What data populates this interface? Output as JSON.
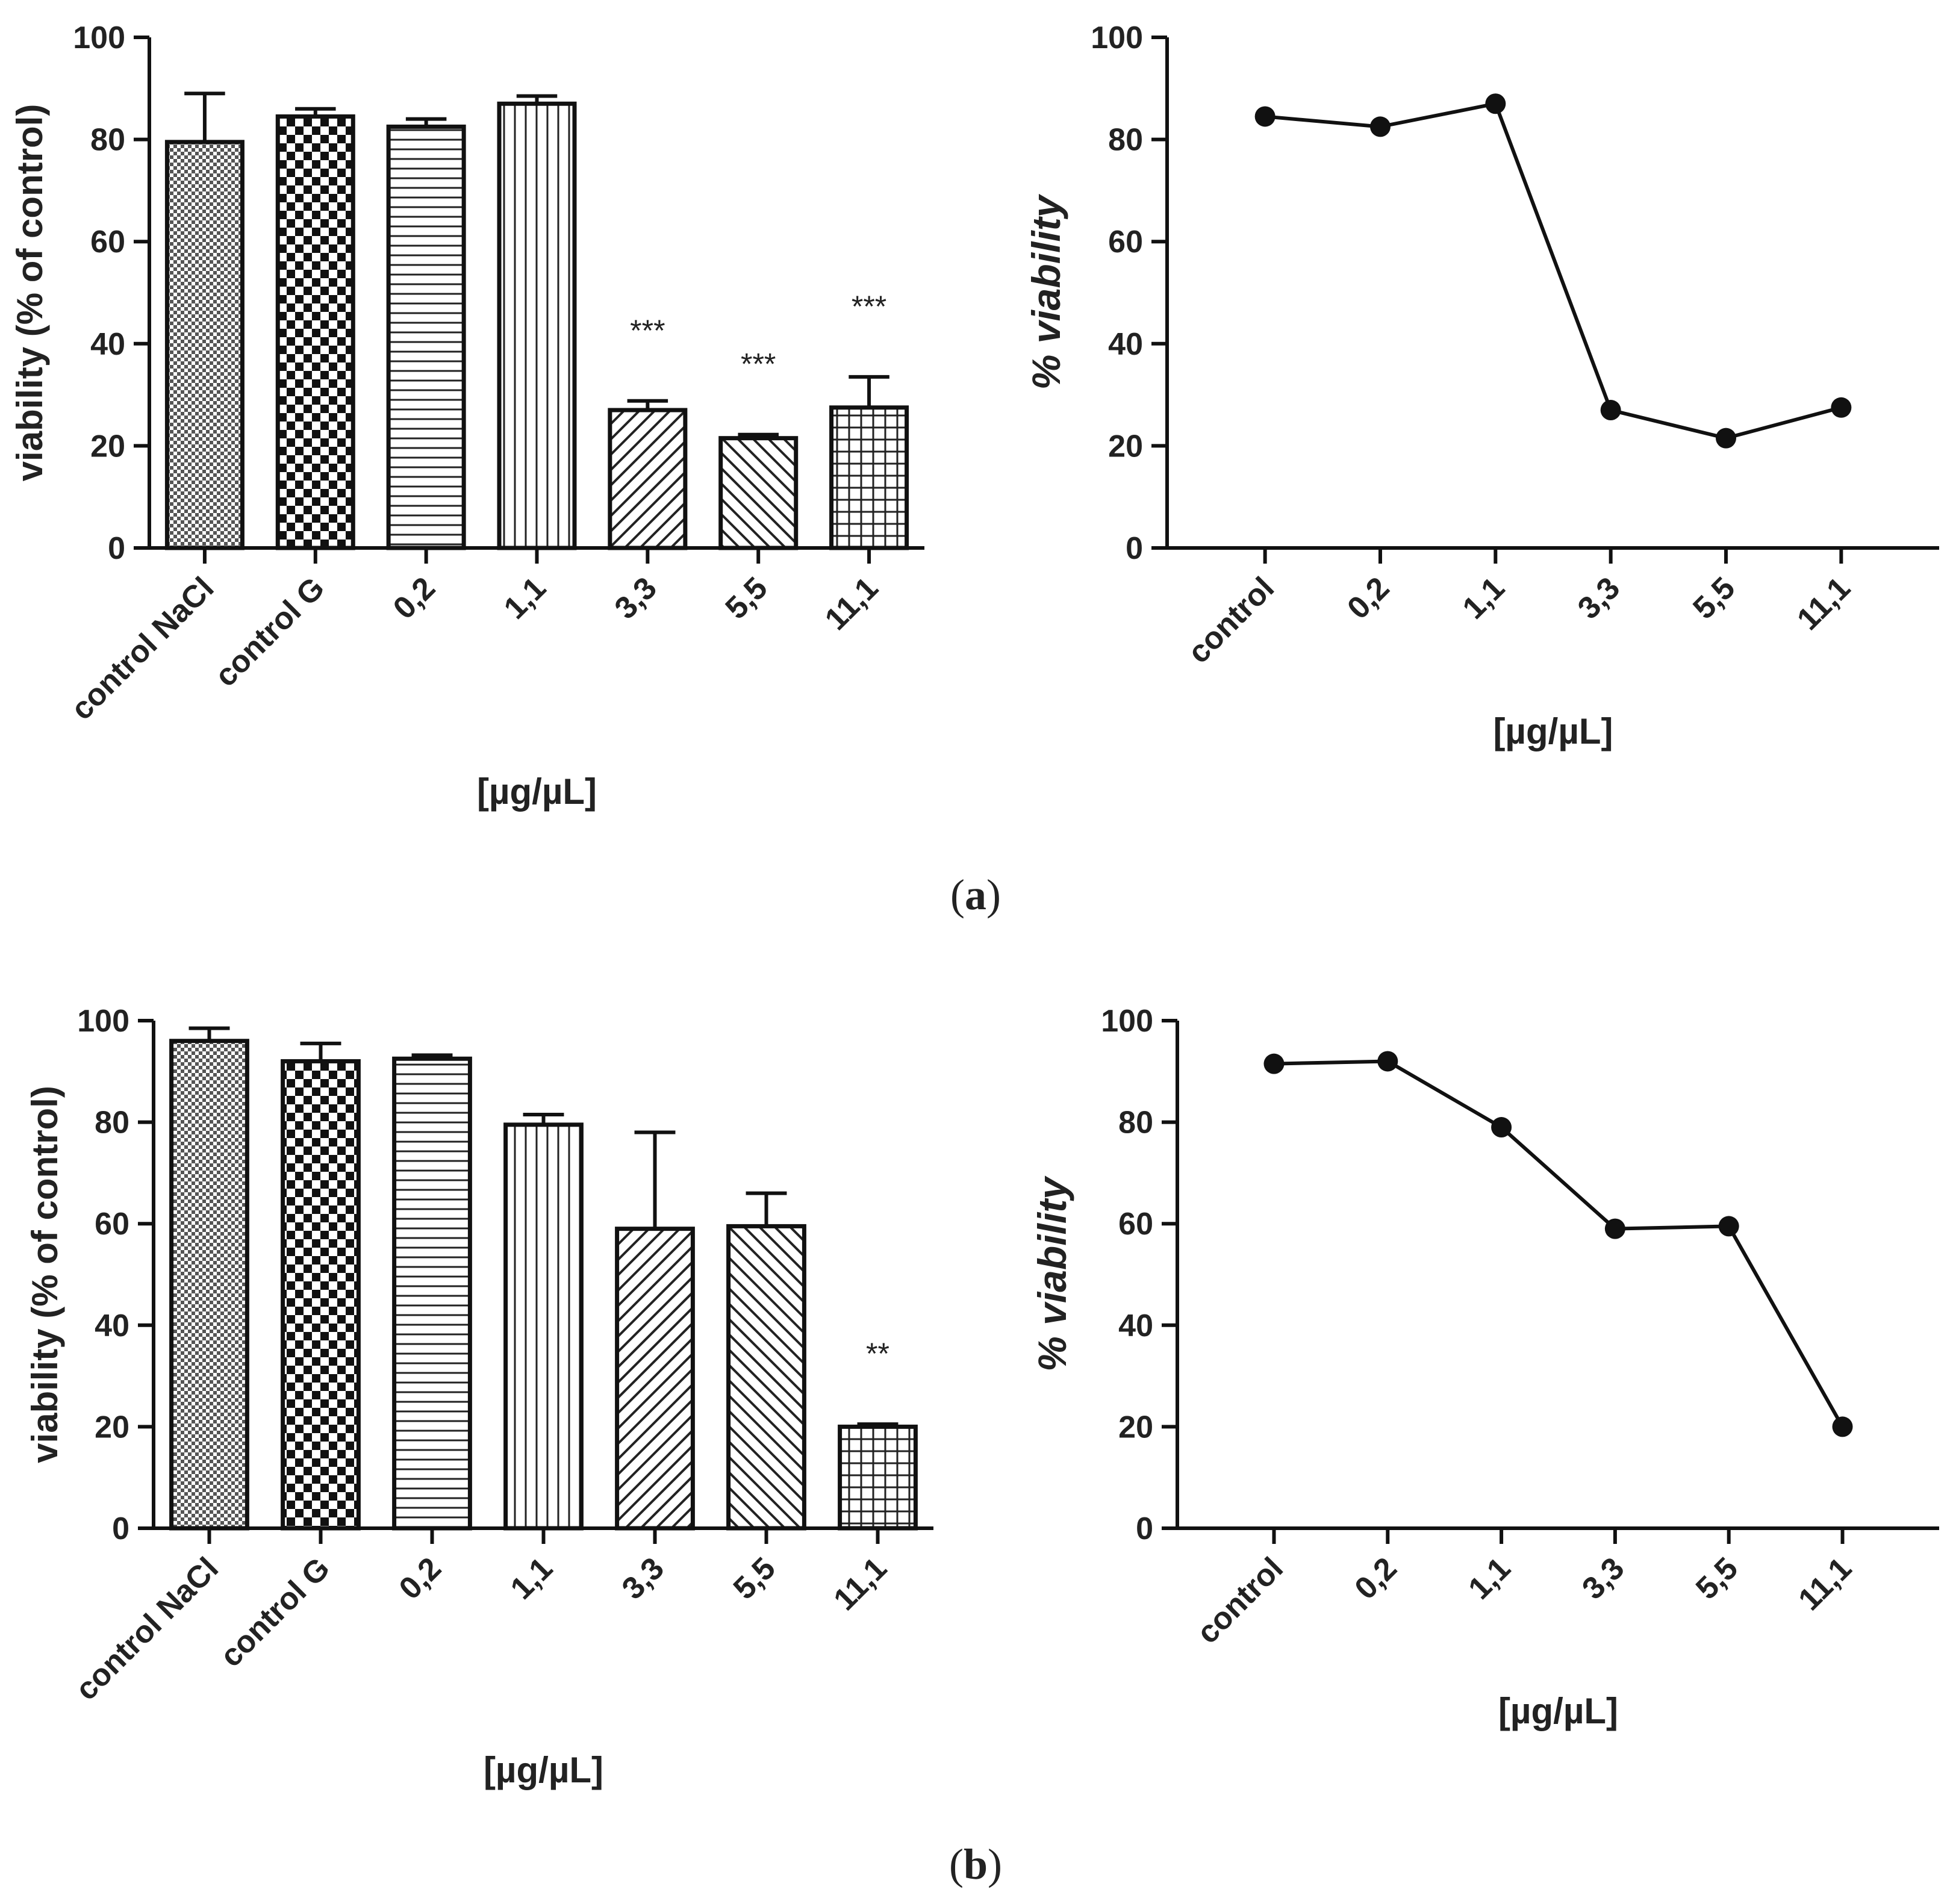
{
  "panels": [
    {
      "id": "a",
      "label": "a"
    },
    {
      "id": "b",
      "label": "b"
    }
  ],
  "chart_data": [
    {
      "type": "bar",
      "panel": "a",
      "categories": [
        "control NaCl",
        "control G",
        "0,2",
        "1,1",
        "3,3",
        "5,5",
        "11,1"
      ],
      "values": [
        79.5,
        84.5,
        82.5,
        87.0,
        27.0,
        21.5,
        27.5
      ],
      "errors": [
        9.5,
        1.5,
        1.5,
        1.5,
        1.8,
        0.7,
        6.0
      ],
      "annotations": [
        "",
        "",
        "",
        "",
        "***",
        "***",
        "***"
      ],
      "patterns": [
        "fine-check",
        "checker",
        "horizontal",
        "vertical",
        "diag-up",
        "diag-down",
        "grid"
      ],
      "ylabel": "viability (% of control)",
      "xlabel": "[µg/µL]",
      "ylim": [
        0,
        100
      ],
      "yticks": [
        "0",
        "20",
        "40",
        "60",
        "80",
        "100"
      ]
    },
    {
      "type": "line",
      "panel": "a",
      "categories": [
        "control",
        "0,2",
        "1,1",
        "3,3",
        "5,5",
        "11,1"
      ],
      "values": [
        84.5,
        82.5,
        87.0,
        27.0,
        21.5,
        27.5
      ],
      "ylabel": "% viability",
      "xlabel": "[µg/µL]",
      "ylim": [
        0,
        100
      ],
      "yticks": [
        "0",
        "20",
        "40",
        "60",
        "80",
        "100"
      ]
    },
    {
      "type": "bar",
      "panel": "b",
      "categories": [
        "control NaCl",
        "control G",
        "0,2",
        "1,1",
        "3,3",
        "5,5",
        "11,1"
      ],
      "values": [
        96.0,
        92.0,
        92.5,
        79.5,
        59.0,
        59.5,
        20.0
      ],
      "errors": [
        2.5,
        3.5,
        0.7,
        2.0,
        19.0,
        6.5,
        0.5
      ],
      "annotations": [
        "",
        "",
        "",
        "",
        "",
        "",
        "**"
      ],
      "patterns": [
        "fine-check",
        "checker",
        "horizontal",
        "vertical",
        "diag-up",
        "diag-down",
        "grid"
      ],
      "ylabel": "viability (% of control)",
      "xlabel": "[µg/µL]",
      "ylim": [
        0,
        100
      ],
      "yticks": [
        "0",
        "20",
        "40",
        "60",
        "80",
        "100"
      ]
    },
    {
      "type": "line",
      "panel": "b",
      "categories": [
        "control",
        "0,2",
        "1,1",
        "3,3",
        "5,5",
        "11,1"
      ],
      "values": [
        91.5,
        92.0,
        79.0,
        59.0,
        59.5,
        20.0
      ],
      "ylabel": "% viability",
      "xlabel": "[µg/µL]",
      "ylim": [
        0,
        100
      ],
      "yticks": [
        "0",
        "20",
        "40",
        "60",
        "80",
        "100"
      ]
    }
  ]
}
